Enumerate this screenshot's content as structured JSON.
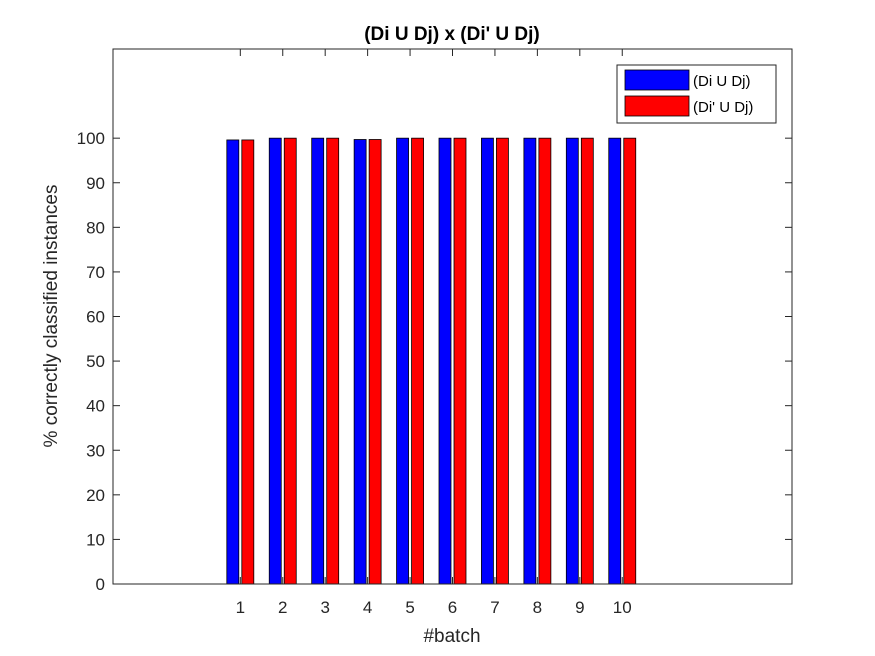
{
  "chart_data": {
    "type": "bar",
    "title": "(Di U Dj) x (Di' U Dj)",
    "xlabel": "#batch",
    "ylabel": "% correctly classified instances",
    "categories": [
      "1",
      "2",
      "3",
      "4",
      "5",
      "6",
      "7",
      "8",
      "9",
      "10"
    ],
    "series": [
      {
        "name": "(Di U Dj)",
        "color": "#0000ff",
        "values": [
          99.6,
          100,
          100,
          99.7,
          100,
          100,
          100,
          100,
          100,
          100
        ]
      },
      {
        "name": "(Di' U Dj)",
        "color": "#ff0000",
        "values": [
          99.6,
          100,
          100,
          99.7,
          100,
          100,
          100,
          100,
          100,
          100
        ]
      }
    ],
    "xlim": [
      -2,
      14
    ],
    "ylim": [
      0,
      120
    ],
    "yticks": [
      "0",
      "10",
      "20",
      "30",
      "40",
      "50",
      "60",
      "70",
      "80",
      "90",
      "100"
    ],
    "grid": false,
    "legend_position": "top-right"
  }
}
